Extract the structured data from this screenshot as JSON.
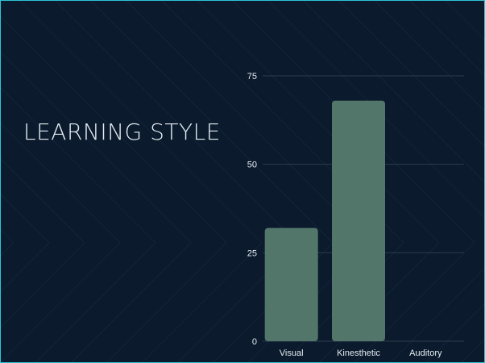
{
  "title": "LEARNING STYLE",
  "colors": {
    "background": "#0b1a2c",
    "border": "#2ec4d6",
    "bar": "#53766b",
    "grid": "#2b3d4e",
    "text": "#e4ecf2"
  },
  "chart_data": {
    "type": "bar",
    "title": "",
    "xlabel": "",
    "ylabel": "",
    "categories": [
      "Visual",
      "Kinesthetic",
      "Auditory"
    ],
    "values": [
      32,
      68,
      0
    ],
    "ylim": [
      0,
      75
    ],
    "yticks": [
      0,
      25,
      50,
      75
    ],
    "grid": true,
    "legend": "none"
  }
}
